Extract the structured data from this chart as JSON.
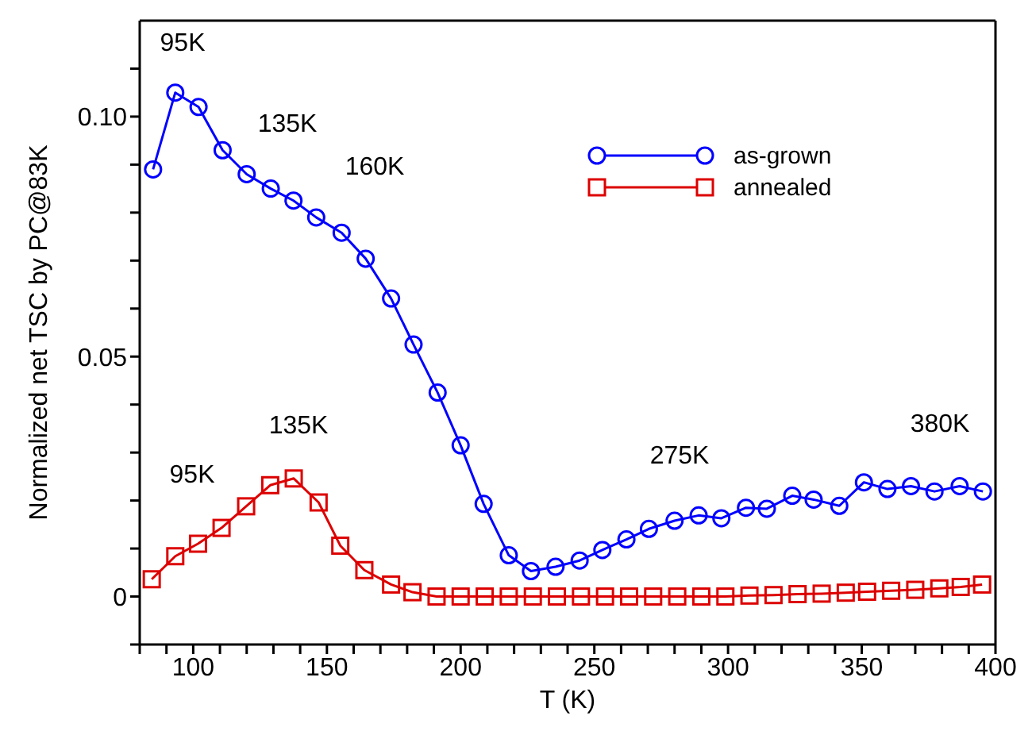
{
  "chart_data": {
    "type": "line",
    "xlabel": "T (K)",
    "ylabel": "Normalized net TSC by PC@83K",
    "xlim": [
      80,
      400
    ],
    "xticks": [
      {
        "value": 80,
        "label": null
      },
      {
        "value": 90,
        "label": null
      },
      100,
      {
        "value": 110,
        "label": null
      },
      {
        "value": 120,
        "label": null
      },
      {
        "value": 130,
        "label": null
      },
      {
        "value": 140,
        "label": null
      },
      150,
      {
        "value": 160,
        "label": null
      },
      {
        "value": 170,
        "label": null
      },
      {
        "value": 180,
        "label": null
      },
      {
        "value": 190,
        "label": null
      },
      200,
      {
        "value": 210,
        "label": null
      },
      {
        "value": 220,
        "label": null
      },
      {
        "value": 230,
        "label": null
      },
      {
        "value": 240,
        "label": null
      },
      250,
      {
        "value": 260,
        "label": null
      },
      {
        "value": 270,
        "label": null
      },
      {
        "value": 280,
        "label": null
      },
      {
        "value": 290,
        "label": null
      },
      300,
      {
        "value": 310,
        "label": null
      },
      {
        "value": 320,
        "label": null
      },
      {
        "value": 330,
        "label": null
      },
      {
        "value": 340,
        "label": null
      },
      350,
      {
        "value": 360,
        "label": null
      },
      {
        "value": 370,
        "label": null
      },
      {
        "value": 380,
        "label": null
      },
      {
        "value": 390,
        "label": null
      },
      400
    ],
    "ylim": [
      -0.01,
      0.12
    ],
    "yticks": [
      {
        "value": -0.01,
        "label": null
      },
      0,
      {
        "value": 0.01,
        "label": null
      },
      {
        "value": 0.02,
        "label": null
      },
      {
        "value": 0.03,
        "label": null
      },
      {
        "value": 0.04,
        "label": null
      },
      0.05,
      {
        "value": 0.06,
        "label": null
      },
      {
        "value": 0.07,
        "label": null
      },
      {
        "value": 0.08,
        "label": null
      },
      {
        "value": 0.09,
        "label": null
      },
      {
        "value": 0.1,
        "label": "0.10"
      },
      {
        "value": 0.11,
        "label": null
      }
    ],
    "grid": false,
    "legend": "top right",
    "line_style": "solid",
    "series": [
      {
        "name": "as-grown",
        "color": "#0000ff",
        "marker": "circle",
        "x": [
          85,
          93.3,
          102,
          111,
          120,
          129,
          137.5,
          146,
          155.5,
          164.5,
          174,
          182.4,
          191.4,
          200,
          208.6,
          218,
          226.3,
          235.5,
          244.5,
          253,
          262,
          270.4,
          280,
          289,
          297.5,
          306.7,
          314.5,
          324,
          332,
          341.6,
          350.8,
          359.6,
          368.4,
          377.2,
          386.6,
          395.3
        ],
        "values": [
          0.089,
          0.105,
          0.102,
          0.093,
          0.088,
          0.085,
          0.0825,
          0.079,
          0.0758,
          0.0704,
          0.0621,
          0.0525,
          0.0425,
          0.0315,
          0.0193,
          0.0086,
          0.0053,
          0.0062,
          0.0075,
          0.0097,
          0.0119,
          0.0141,
          0.0158,
          0.0169,
          0.0163,
          0.0185,
          0.0183,
          0.021,
          0.0202,
          0.0189,
          0.0238,
          0.0224,
          0.023,
          0.0219,
          0.023,
          0.0219
        ]
      },
      {
        "name": "annealed",
        "color": "#dd0000",
        "marker": "square",
        "x": [
          84.5,
          93.3,
          101.8,
          110.6,
          119.8,
          128.8,
          137.6,
          146.9,
          155,
          164,
          174,
          182,
          191,
          200,
          209,
          218,
          227,
          236,
          245,
          254,
          263,
          272,
          281,
          290,
          299,
          308,
          317,
          326,
          335,
          344,
          352,
          361,
          370,
          379,
          387,
          395
        ],
        "values": [
          0.0036,
          0.0084,
          0.011,
          0.0143,
          0.0188,
          0.0232,
          0.0246,
          0.0196,
          0.0106,
          0.0055,
          0.0025,
          0.0009,
          0,
          0,
          0,
          0,
          0,
          0,
          0,
          0,
          0,
          0,
          0,
          0,
          0,
          0.0002,
          0.0003,
          0.0005,
          0.0006,
          0.0008,
          0.001,
          0.0012,
          0.0014,
          0.0017,
          0.002,
          0.0025
        ]
      }
    ],
    "annotations": [
      "95K",
      "135K",
      "160K",
      "95K",
      "135K",
      "275K",
      "380K"
    ]
  }
}
